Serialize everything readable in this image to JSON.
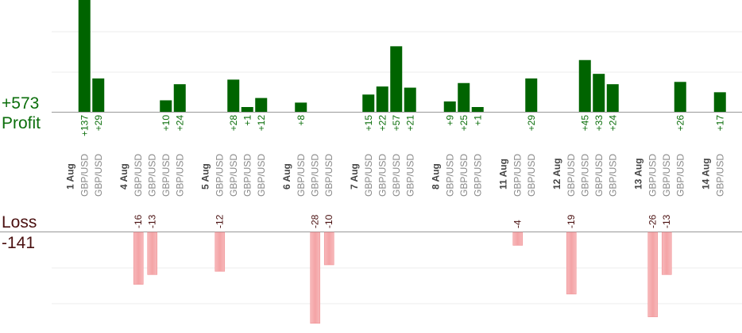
{
  "summary": {
    "profit_total": "+573",
    "profit_label": "Profit",
    "loss_label": "Loss",
    "loss_total": "-141"
  },
  "colors": {
    "profit_bar": "#006400",
    "profit_text": "#0b6e0b",
    "loss_bar": "#f4a3a6",
    "loss_text": "#4a1010",
    "axis_line": "#999999",
    "grid": "#eeeeee",
    "date_text": "#444444",
    "pair_text": "#888888"
  },
  "chart_data": {
    "type": "bar",
    "grid": true,
    "groups": [
      {
        "date": "1 Aug",
        "trades": [
          {
            "pair": "GBP/USD",
            "value": 137,
            "label": "+137"
          },
          {
            "pair": "GBP/USD",
            "value": 29,
            "label": "+29"
          }
        ]
      },
      {
        "date": "4 Aug",
        "trades": [
          {
            "pair": "GBP/USD",
            "value": -16,
            "label": "-16"
          },
          {
            "pair": "GBP/USD",
            "value": -13,
            "label": "-13"
          },
          {
            "pair": "GBP/USD",
            "value": 10,
            "label": "+10"
          },
          {
            "pair": "GBP/USD",
            "value": 24,
            "label": "+24"
          }
        ]
      },
      {
        "date": "5 Aug",
        "trades": [
          {
            "pair": "GBP/USD",
            "value": -12,
            "label": "-12"
          },
          {
            "pair": "GBP/USD",
            "value": 28,
            "label": "+28"
          },
          {
            "pair": "GBP/USD",
            "value": 1,
            "label": "+1"
          },
          {
            "pair": "GBP/USD",
            "value": 12,
            "label": "+12"
          }
        ]
      },
      {
        "date": "6 Aug",
        "trades": [
          {
            "pair": "GBP/USD",
            "value": 8,
            "label": "+8"
          },
          {
            "pair": "GBP/USD",
            "value": -28,
            "label": "-28"
          },
          {
            "pair": "GBP/USD",
            "value": -10,
            "label": "-10"
          }
        ]
      },
      {
        "date": "7 Aug",
        "trades": [
          {
            "pair": "GBP/USD",
            "value": 15,
            "label": "+15"
          },
          {
            "pair": "GBP/USD",
            "value": 22,
            "label": "+22"
          },
          {
            "pair": "GBP/USD",
            "value": 57,
            "label": "+57"
          },
          {
            "pair": "GBP/USD",
            "value": 21,
            "label": "+21"
          }
        ]
      },
      {
        "date": "8 Aug",
        "trades": [
          {
            "pair": "GBP/USD",
            "value": 9,
            "label": "+9"
          },
          {
            "pair": "GBP/USD",
            "value": 25,
            "label": "+25"
          },
          {
            "pair": "GBP/USD",
            "value": 1,
            "label": "+1"
          }
        ]
      },
      {
        "date": "11 Aug",
        "trades": [
          {
            "pair": "GBP/USD",
            "value": -4,
            "label": "-4"
          },
          {
            "pair": "GBP/USD",
            "value": 29,
            "label": "+29"
          }
        ]
      },
      {
        "date": "12 Aug",
        "trades": [
          {
            "pair": "GBP/USD",
            "value": -19,
            "label": "-19"
          },
          {
            "pair": "GBP/USD",
            "value": 45,
            "label": "+45"
          },
          {
            "pair": "GBP/USD",
            "value": 33,
            "label": "+33"
          },
          {
            "pair": "GBP/USD",
            "value": 24,
            "label": "+24"
          }
        ]
      },
      {
        "date": "13 Aug",
        "trades": [
          {
            "pair": "GBP/USD",
            "value": -26,
            "label": "-26"
          },
          {
            "pair": "GBP/USD",
            "value": -13,
            "label": "-13"
          },
          {
            "pair": "GBP/USD",
            "value": 26,
            "label": "+26"
          }
        ]
      },
      {
        "date": "14 Aug",
        "trades": [
          {
            "pair": "GBP/USD",
            "value": 17,
            "label": "+17"
          }
        ]
      }
    ]
  }
}
